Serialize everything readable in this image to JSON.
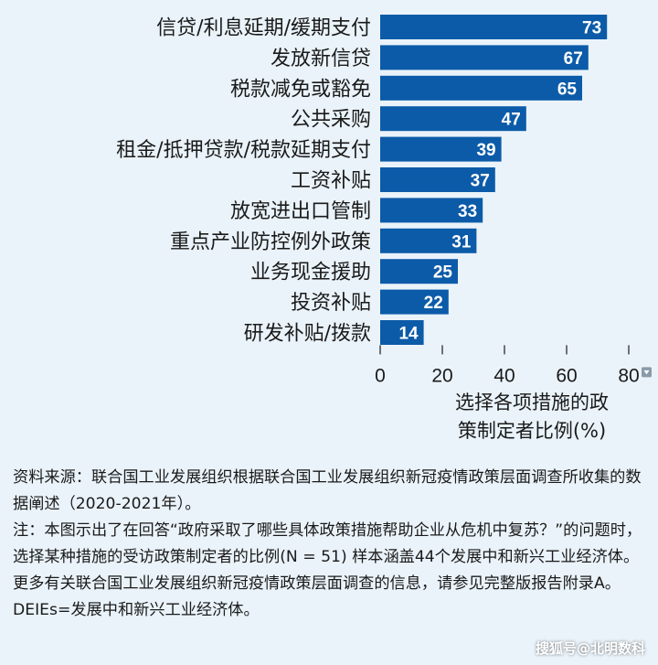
{
  "chart_data": {
    "type": "bar",
    "orientation": "horizontal",
    "categories": [
      "信贷/利息延期/缓期支付",
      "发放新信贷",
      "税款减免或豁免",
      "公共采购",
      "租金/抵押贷款/税款延期支付",
      "工资补贴",
      "放宽进出口管制",
      "重点产业防控例外政策",
      "业务现金援助",
      "投资补贴",
      "研发补贴/拨款"
    ],
    "values": [
      73,
      67,
      65,
      47,
      39,
      37,
      33,
      31,
      25,
      22,
      14
    ],
    "xticks": [
      0,
      20,
      40,
      60,
      80
    ],
    "xlim": [
      0,
      80
    ],
    "xlabel_line1": "选择各项措施的政",
    "xlabel_line2": "策制定者比例(%)",
    "bar_color": "#0c5ba8",
    "grid": false,
    "title": ""
  },
  "notes": {
    "source": "资料来源：联合国工业发展组织根据联合国工业发展组织新冠疫情政策层面调查所收集的数据阐述（2020-2021年）。",
    "note": "注：本图示出了在回答“政府采取了哪些具体政策措施帮助企业从危机中复苏？”的问题时，选择某种措施的受访政策制定者的比例(N = 51) 样本涵盖44个发展中和新兴工业经济体。更多有关联合国工业发展组织新冠疫情政策层面调查的信息，请参见完整版报告附录A。DEIEs=发展中和新兴工业经济体。"
  },
  "watermark": "搜狐号@北明数科"
}
